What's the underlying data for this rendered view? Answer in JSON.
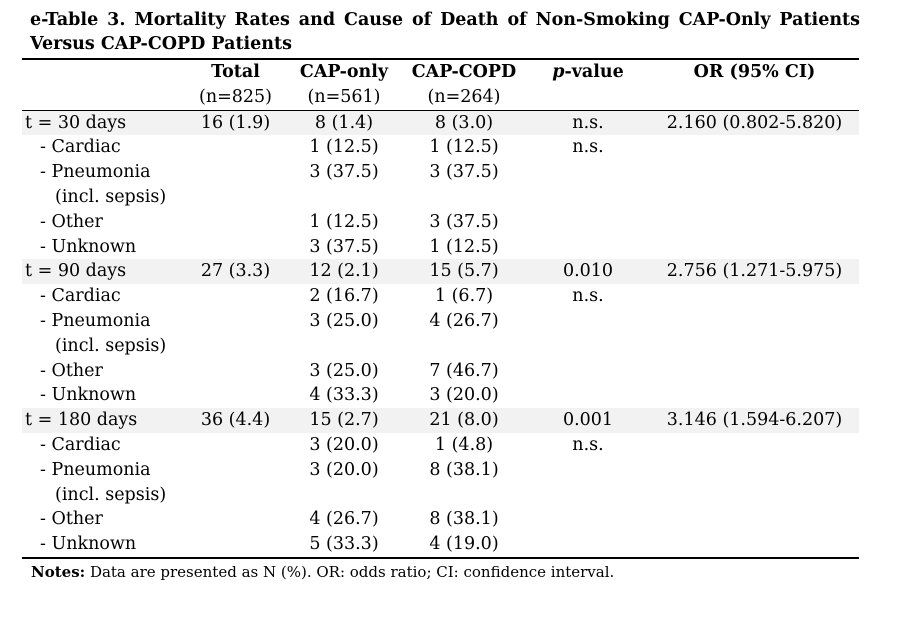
{
  "title": {
    "line1": "e-Table 3. Mortality Rates and Cause of Death of Non-Smoking CAP-Only Patients",
    "line2": "Versus CAP-COPD Patients"
  },
  "table": {
    "headers": [
      {
        "label": "",
        "sub": ""
      },
      {
        "label": "Total",
        "sub": "(n=825)"
      },
      {
        "label": "CAP-only",
        "sub": "(n=561)"
      },
      {
        "label": "CAP-COPD",
        "sub": "(n=264)"
      },
      {
        "label_italic": "p",
        "label_rest": "-value",
        "sub": ""
      },
      {
        "label": "OR (95% CI)",
        "sub": ""
      }
    ],
    "groups": [
      {
        "label": "t = 30 days",
        "total": "16 (1.9)",
        "cap_only": "8 (1.4)",
        "cap_copd": "8 (3.0)",
        "p": "n.s.",
        "or": "2.160 (0.802-5.820)",
        "causes": [
          {
            "label": "- Cardiac",
            "cap_only": "1 (12.5)",
            "cap_copd": "1 (12.5)",
            "p": "n.s."
          },
          {
            "label": "- Pneumonia",
            "label2": "(incl. sepsis)",
            "cap_only": "3 (37.5)",
            "cap_copd": "3 (37.5)",
            "p": ""
          },
          {
            "label": "- Other",
            "cap_only": "1 (12.5)",
            "cap_copd": "3 (37.5)",
            "p": ""
          },
          {
            "label": "- Unknown",
            "cap_only": "3 (37.5)",
            "cap_copd": "1 (12.5)",
            "p": ""
          }
        ]
      },
      {
        "label": "t = 90 days",
        "total": "27 (3.3)",
        "cap_only": "12 (2.1)",
        "cap_copd": "15 (5.7)",
        "p": "0.010",
        "or": "2.756 (1.271-5.975)",
        "causes": [
          {
            "label": "- Cardiac",
            "cap_only": "2 (16.7)",
            "cap_copd": "1 (6.7)",
            "p": "n.s."
          },
          {
            "label": "- Pneumonia",
            "label2": "(incl. sepsis)",
            "cap_only": "3 (25.0)",
            "cap_copd": "4 (26.7)",
            "p": ""
          },
          {
            "label": "- Other",
            "cap_only": "3 (25.0)",
            "cap_copd": "7 (46.7)",
            "p": ""
          },
          {
            "label": "- Unknown",
            "cap_only": "4 (33.3)",
            "cap_copd": "3 (20.0)",
            "p": ""
          }
        ]
      },
      {
        "label": "t = 180 days",
        "total": "36 (4.4)",
        "cap_only": "15 (2.7)",
        "cap_copd": "21 (8.0)",
        "p": "0.001",
        "or": "3.146 (1.594-6.207)",
        "causes": [
          {
            "label": "- Cardiac",
            "cap_only": "3 (20.0)",
            "cap_copd": "1 (4.8)",
            "p": "n.s."
          },
          {
            "label": "- Pneumonia",
            "label2": "(incl. sepsis)",
            "cap_only": "3 (20.0)",
            "cap_copd": "8 (38.1)",
            "p": ""
          },
          {
            "label": "- Other",
            "cap_only": "4 (26.7)",
            "cap_copd": "8 (38.1)",
            "p": ""
          },
          {
            "label": "- Unknown",
            "cap_only": "5 (33.3)",
            "cap_copd": "4 (19.0)",
            "p": ""
          }
        ]
      }
    ]
  },
  "notes": {
    "label": "Notes:",
    "text": " Data are presented as N (%). OR: odds ratio; CI: confidence interval."
  },
  "colors": {
    "band_shade": "#f2f2f2",
    "rule": "#000000"
  }
}
